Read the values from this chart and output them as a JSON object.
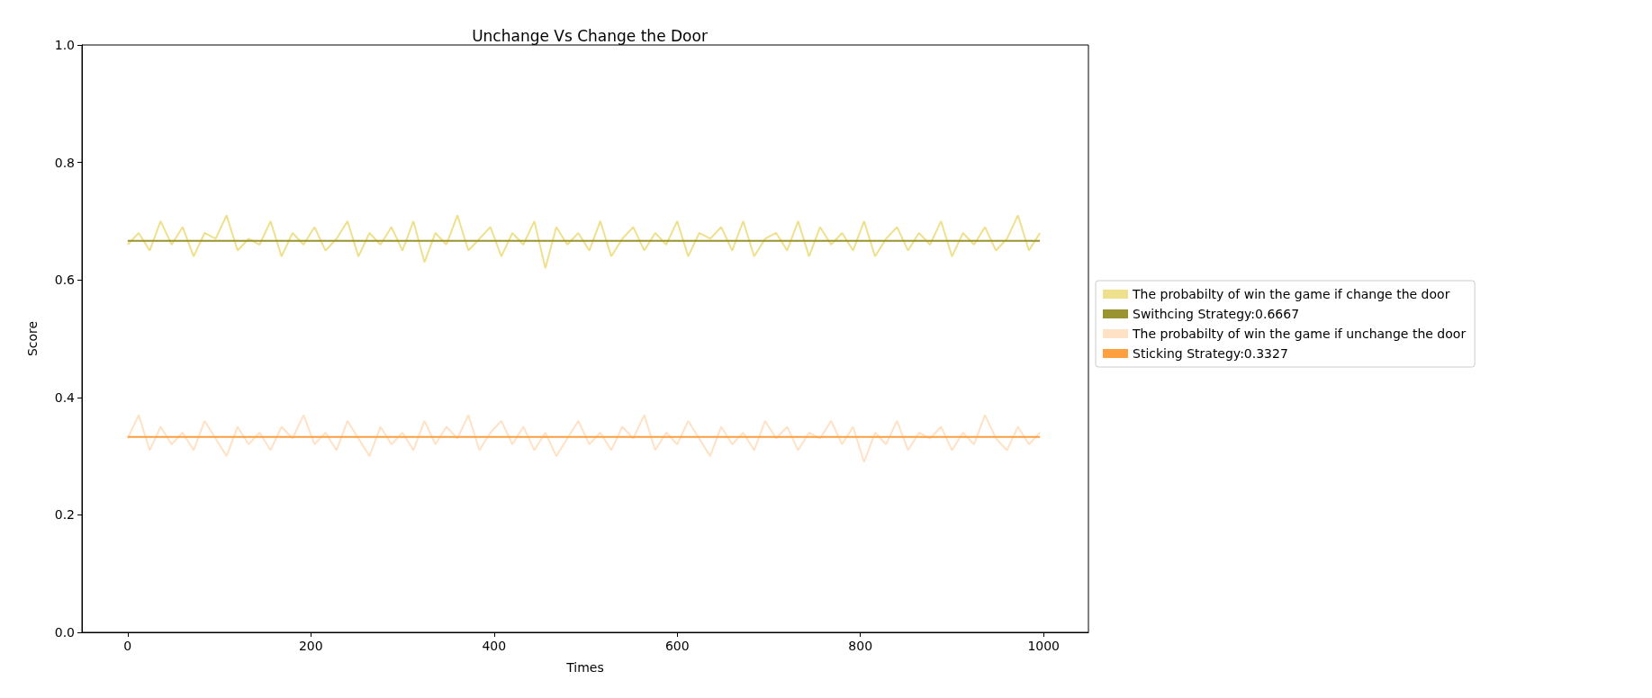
{
  "chart_data": {
    "type": "line",
    "title": "Unchange Vs Change the Door",
    "xlabel": "Times",
    "ylabel": "Score",
    "x": [
      0,
      12,
      24,
      36,
      48,
      60,
      72,
      84,
      96,
      108,
      120,
      132,
      144,
      156,
      168,
      180,
      192,
      204,
      216,
      228,
      240,
      252,
      264,
      276,
      288,
      300,
      312,
      324,
      336,
      348,
      360,
      372,
      384,
      396,
      408,
      420,
      432,
      444,
      456,
      468,
      480,
      492,
      504,
      516,
      528,
      540,
      552,
      564,
      576,
      588,
      600,
      612,
      624,
      636,
      648,
      660,
      672,
      684,
      696,
      708,
      720,
      732,
      744,
      756,
      768,
      780,
      792,
      804,
      816,
      828,
      840,
      852,
      864,
      876,
      888,
      900,
      912,
      924,
      936,
      948,
      960,
      972,
      984,
      996
    ],
    "series": [
      {
        "name": "The probabilty of win the game if change the door",
        "color": "#efe08e",
        "values": [
          0.66,
          0.68,
          0.65,
          0.7,
          0.66,
          0.69,
          0.64,
          0.68,
          0.67,
          0.71,
          0.65,
          0.67,
          0.66,
          0.7,
          0.64,
          0.68,
          0.66,
          0.69,
          0.65,
          0.67,
          0.7,
          0.64,
          0.68,
          0.66,
          0.69,
          0.65,
          0.7,
          0.63,
          0.68,
          0.66,
          0.71,
          0.65,
          0.67,
          0.69,
          0.64,
          0.68,
          0.66,
          0.7,
          0.62,
          0.69,
          0.66,
          0.68,
          0.65,
          0.7,
          0.64,
          0.67,
          0.69,
          0.65,
          0.68,
          0.66,
          0.7,
          0.64,
          0.68,
          0.67,
          0.69,
          0.65,
          0.7,
          0.64,
          0.67,
          0.68,
          0.65,
          0.7,
          0.64,
          0.69,
          0.66,
          0.68,
          0.65,
          0.7,
          0.64,
          0.67,
          0.69,
          0.65,
          0.68,
          0.66,
          0.7,
          0.64,
          0.68,
          0.66,
          0.69,
          0.65,
          0.67,
          0.71,
          0.65,
          0.68
        ]
      },
      {
        "name": "Swithcing Strategy:0.6667",
        "color": "#9a9430",
        "values": [
          0.6667,
          0.6667,
          0.6667,
          0.6667,
          0.6667,
          0.6667,
          0.6667,
          0.6667,
          0.6667,
          0.6667,
          0.6667,
          0.6667,
          0.6667,
          0.6667,
          0.6667,
          0.6667,
          0.6667,
          0.6667,
          0.6667,
          0.6667,
          0.6667,
          0.6667,
          0.6667,
          0.6667,
          0.6667,
          0.6667,
          0.6667,
          0.6667,
          0.6667,
          0.6667,
          0.6667,
          0.6667,
          0.6667,
          0.6667,
          0.6667,
          0.6667,
          0.6667,
          0.6667,
          0.6667,
          0.6667,
          0.6667,
          0.6667,
          0.6667,
          0.6667,
          0.6667,
          0.6667,
          0.6667,
          0.6667,
          0.6667,
          0.6667,
          0.6667,
          0.6667,
          0.6667,
          0.6667,
          0.6667,
          0.6667,
          0.6667,
          0.6667,
          0.6667,
          0.6667,
          0.6667,
          0.6667,
          0.6667,
          0.6667,
          0.6667,
          0.6667,
          0.6667,
          0.6667,
          0.6667,
          0.6667,
          0.6667,
          0.6667,
          0.6667,
          0.6667,
          0.6667,
          0.6667,
          0.6667,
          0.6667,
          0.6667,
          0.6667,
          0.6667,
          0.6667,
          0.6667,
          0.6667
        ]
      },
      {
        "name": "The probabilty of win the game if unchange the door",
        "color": "#ffe2c6",
        "values": [
          0.33,
          0.37,
          0.31,
          0.35,
          0.32,
          0.34,
          0.31,
          0.36,
          0.33,
          0.3,
          0.35,
          0.32,
          0.34,
          0.31,
          0.35,
          0.33,
          0.37,
          0.32,
          0.34,
          0.31,
          0.36,
          0.33,
          0.3,
          0.35,
          0.32,
          0.34,
          0.31,
          0.36,
          0.32,
          0.35,
          0.33,
          0.37,
          0.31,
          0.34,
          0.36,
          0.32,
          0.35,
          0.31,
          0.34,
          0.3,
          0.33,
          0.36,
          0.32,
          0.34,
          0.31,
          0.35,
          0.33,
          0.37,
          0.31,
          0.34,
          0.32,
          0.36,
          0.33,
          0.3,
          0.35,
          0.32,
          0.34,
          0.31,
          0.36,
          0.33,
          0.35,
          0.31,
          0.34,
          0.33,
          0.36,
          0.32,
          0.35,
          0.29,
          0.34,
          0.32,
          0.36,
          0.31,
          0.34,
          0.33,
          0.35,
          0.31,
          0.34,
          0.32,
          0.37,
          0.33,
          0.31,
          0.35,
          0.32,
          0.34
        ]
      },
      {
        "name": "Sticking Strategy:0.3327",
        "color": "#ffa040",
        "values": [
          0.3327,
          0.3327,
          0.3327,
          0.3327,
          0.3327,
          0.3327,
          0.3327,
          0.3327,
          0.3327,
          0.3327,
          0.3327,
          0.3327,
          0.3327,
          0.3327,
          0.3327,
          0.3327,
          0.3327,
          0.3327,
          0.3327,
          0.3327,
          0.3327,
          0.3327,
          0.3327,
          0.3327,
          0.3327,
          0.3327,
          0.3327,
          0.3327,
          0.3327,
          0.3327,
          0.3327,
          0.3327,
          0.3327,
          0.3327,
          0.3327,
          0.3327,
          0.3327,
          0.3327,
          0.3327,
          0.3327,
          0.3327,
          0.3327,
          0.3327,
          0.3327,
          0.3327,
          0.3327,
          0.3327,
          0.3327,
          0.3327,
          0.3327,
          0.3327,
          0.3327,
          0.3327,
          0.3327,
          0.3327,
          0.3327,
          0.3327,
          0.3327,
          0.3327,
          0.3327,
          0.3327,
          0.3327,
          0.3327,
          0.3327,
          0.3327,
          0.3327,
          0.3327,
          0.3327,
          0.3327,
          0.3327,
          0.3327,
          0.3327,
          0.3327,
          0.3327,
          0.3327,
          0.3327,
          0.3327,
          0.3327,
          0.3327,
          0.3327,
          0.3327,
          0.3327,
          0.3327,
          0.3327
        ]
      }
    ],
    "xlim": [
      -49.95,
      1048.95
    ],
    "xticks": [
      0,
      200,
      400,
      600,
      800,
      1000
    ],
    "ylim": [
      0,
      1
    ],
    "yticks": [
      {
        "value": 0,
        "label": "0.0"
      },
      {
        "value": 0.2,
        "label": "0.2"
      },
      {
        "value": 0.4,
        "label": "0.4"
      },
      {
        "value": 0.6,
        "label": "0.6"
      },
      {
        "value": 0.8,
        "label": "0.8"
      },
      {
        "value": 1,
        "label": "1.0"
      }
    ],
    "legend": "right",
    "marker": "none",
    "line_style": "solid"
  }
}
